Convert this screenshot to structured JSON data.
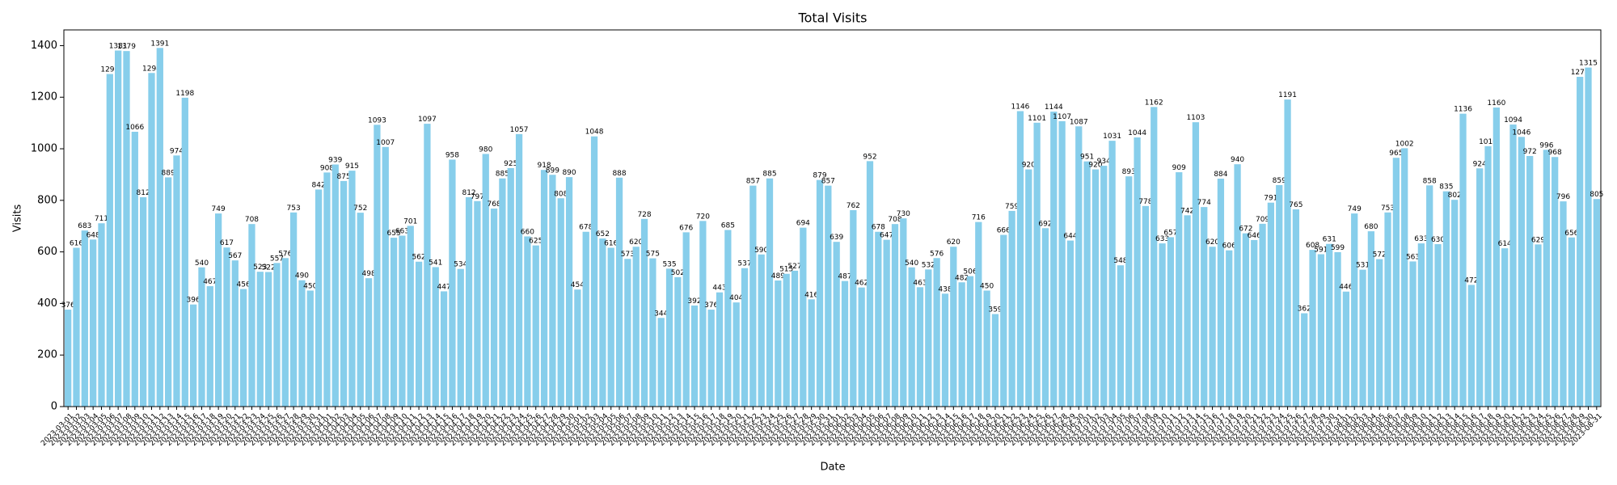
{
  "chart_data": {
    "type": "bar",
    "title": "Total Visits",
    "x_label": "Date",
    "y_label": "Visits",
    "color": "#87ceeb",
    "categories": [
      "2023-03-01",
      "2023-03-02",
      "2023-03-03",
      "2023-03-04",
      "2023-03-05",
      "2023-03-06",
      "2023-03-07",
      "2023-03-08",
      "2023-03-09",
      "2023-03-10",
      "2023-03-11",
      "2023-03-12",
      "2023-03-13",
      "2023-03-14",
      "2023-03-15",
      "2023-03-16",
      "2023-03-17",
      "2023-03-18",
      "2023-03-19",
      "2023-03-20",
      "2023-03-21",
      "2023-03-22",
      "2023-03-23",
      "2023-03-24",
      "2023-03-25",
      "2023-03-26",
      "2023-03-27",
      "2023-03-28",
      "2023-03-29",
      "2023-03-30",
      "2023-03-31",
      "2023-04-01",
      "2023-04-02",
      "2023-04-03",
      "2023-04-04",
      "2023-04-05",
      "2023-04-06",
      "2023-04-07",
      "2023-04-08",
      "2023-04-09",
      "2023-04-10",
      "2023-04-11",
      "2023-04-12",
      "2023-04-13",
      "2023-04-14",
      "2023-04-15",
      "2023-04-16",
      "2023-04-17",
      "2023-04-18",
      "2023-04-19",
      "2023-04-20",
      "2023-04-21",
      "2023-04-22",
      "2023-04-23",
      "2023-04-24",
      "2023-04-25",
      "2023-04-26",
      "2023-04-27",
      "2023-04-28",
      "2023-04-29",
      "2023-04-30",
      "2023-05-01",
      "2023-05-02",
      "2023-05-03",
      "2023-05-04",
      "2023-05-05",
      "2023-05-06",
      "2023-05-07",
      "2023-05-08",
      "2023-05-09",
      "2023-05-10",
      "2023-05-11",
      "2023-05-12",
      "2023-05-13",
      "2023-05-14",
      "2023-05-15",
      "2023-05-16",
      "2023-05-17",
      "2023-05-18",
      "2023-05-19",
      "2023-05-20",
      "2023-05-21",
      "2023-05-22",
      "2023-05-23",
      "2023-05-24",
      "2023-05-25",
      "2023-05-26",
      "2023-05-27",
      "2023-05-28",
      "2023-05-29",
      "2023-05-30",
      "2023-05-31",
      "2023-06-01",
      "2023-06-02",
      "2023-06-03",
      "2023-06-04",
      "2023-06-05",
      "2023-06-06",
      "2023-06-07",
      "2023-06-08",
      "2023-06-09",
      "2023-06-10",
      "2023-06-11",
      "2023-06-12",
      "2023-06-13",
      "2023-06-14",
      "2023-06-15",
      "2023-06-16",
      "2023-06-17",
      "2023-06-18",
      "2023-06-19",
      "2023-06-20",
      "2023-06-21",
      "2023-06-22",
      "2023-06-23",
      "2023-06-24",
      "2023-06-25",
      "2023-06-26",
      "2023-06-27",
      "2023-06-28",
      "2023-06-29",
      "2023-06-30",
      "2023-07-01",
      "2023-07-02",
      "2023-07-03",
      "2023-07-04",
      "2023-07-05",
      "2023-07-06",
      "2023-07-07",
      "2023-07-08",
      "2023-07-09",
      "2023-07-10",
      "2023-07-11",
      "2023-07-12",
      "2023-07-13",
      "2023-07-14",
      "2023-07-15",
      "2023-07-16",
      "2023-07-17",
      "2023-07-18",
      "2023-07-19",
      "2023-07-20",
      "2023-07-21",
      "2023-07-22",
      "2023-07-23",
      "2023-07-24",
      "2023-07-25",
      "2023-07-26",
      "2023-07-27",
      "2023-07-28",
      "2023-07-29",
      "2023-07-30",
      "2023-07-31",
      "2023-08-01",
      "2023-08-02",
      "2023-08-03",
      "2023-08-04",
      "2023-08-05",
      "2023-08-06",
      "2023-08-07",
      "2023-08-08",
      "2023-08-09",
      "2023-08-10",
      "2023-08-11",
      "2023-08-12",
      "2023-08-13",
      "2023-08-14",
      "2023-08-15",
      "2023-08-16",
      "2023-08-17",
      "2023-08-18",
      "2023-08-19",
      "2023-08-20",
      "2023-08-21",
      "2023-08-22",
      "2023-08-23",
      "2023-08-24",
      "2023-08-25",
      "2023-08-26",
      "2023-08-27",
      "2023-08-28",
      "2023-08-29",
      "2023-08-30",
      "2023-08-31"
    ],
    "values": [
      376,
      616,
      683,
      648,
      711,
      1290,
      1381,
      1379,
      1066,
      812,
      1294,
      1391,
      889,
      974,
      1198,
      396,
      540,
      467,
      749,
      617,
      567,
      456,
      708,
      523,
      522,
      557,
      576,
      753,
      490,
      450,
      842,
      908,
      939,
      875,
      915,
      752,
      498,
      1093,
      1007,
      655,
      663,
      701,
      562,
      1097,
      541,
      447,
      958,
      534,
      812,
      797,
      980,
      768,
      885,
      925,
      1057,
      660,
      625,
      918,
      899,
      808,
      890,
      454,
      678,
      1048,
      652,
      616,
      888,
      573,
      620,
      728,
      575,
      344,
      535,
      502,
      676,
      392,
      720,
      376,
      443,
      685,
      404,
      537,
      857,
      590,
      885,
      489,
      515,
      527,
      694,
      416,
      879,
      857,
      639,
      487,
      762,
      462,
      952,
      678,
      647,
      708,
      730,
      540,
      463,
      532,
      576,
      438,
      620,
      482,
      506,
      716,
      450,
      359,
      666,
      759,
      1146,
      920,
      1101,
      692,
      1144,
      1107,
      644,
      1087,
      951,
      920,
      934,
      1031,
      548,
      893,
      1044,
      778,
      1162,
      633,
      657,
      909,
      742,
      1103,
      774,
      620,
      884,
      606,
      940,
      672,
      646,
      709,
      791,
      859,
      1191,
      765,
      362,
      608,
      591,
      631,
      599,
      446,
      749,
      531,
      680,
      572,
      753,
      965,
      1002,
      563,
      633,
      858,
      630,
      835,
      802,
      1136,
      472,
      924,
      1010,
      1160,
      614,
      1094,
      1046,
      972,
      629,
      996,
      968,
      796,
      656,
      1279,
      1315,
      805
    ],
    "ylim": [
      0,
      1461
    ],
    "yticks": [
      0,
      200,
      400,
      600,
      800,
      1000,
      1200,
      1400
    ]
  }
}
